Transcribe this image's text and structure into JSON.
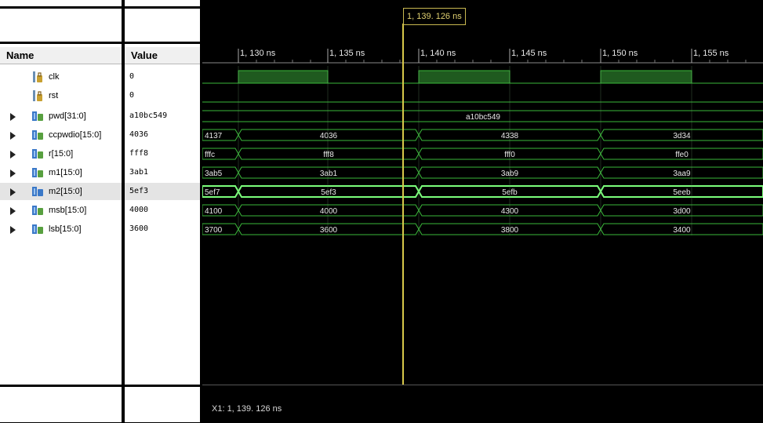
{
  "columns": {
    "name_header": "Name",
    "value_header": "Value"
  },
  "signals": [
    {
      "name": "clk",
      "value": "0",
      "icon": "scalar-signal-icon",
      "expandable": false
    },
    {
      "name": "rst",
      "value": "0",
      "icon": "scalar-signal-icon",
      "expandable": false
    },
    {
      "name": "pwd[31:0]",
      "value": "a10bc549",
      "icon": "bus-signal-icon",
      "expandable": true
    },
    {
      "name": "ccpwdio[15:0]",
      "value": "4036",
      "icon": "bus-signal-icon",
      "expandable": true
    },
    {
      "name": "r[15:0]",
      "value": "fff8",
      "icon": "bus-signal-icon",
      "expandable": true
    },
    {
      "name": "m1[15:0]",
      "value": "3ab1",
      "icon": "bus-signal-icon",
      "expandable": true
    },
    {
      "name": "m2[15:0]",
      "value": "5ef3",
      "icon": "bus-signal-icon",
      "expandable": true,
      "selected": true
    },
    {
      "name": "msb[15:0]",
      "value": "4000",
      "icon": "bus-signal-icon",
      "expandable": true
    },
    {
      "name": "lsb[15:0]",
      "value": "3600",
      "icon": "bus-signal-icon",
      "expandable": true
    }
  ],
  "timeline": {
    "ticks": [
      "1, 130 ns",
      "1, 135 ns",
      "1, 140 ns",
      "1, 145 ns",
      "1, 150 ns",
      "1, 155 ns"
    ],
    "cursor_label": "1, 139. 126 ns"
  },
  "waveforms": {
    "pwd": [
      "a10bc549"
    ],
    "ccpwdio": [
      "4137",
      "4036",
      "4338",
      "3d34"
    ],
    "r": [
      "fffc",
      "fff8",
      "fff0",
      "ffe0"
    ],
    "m1": [
      "3ab5",
      "3ab1",
      "3ab9",
      "3aa9"
    ],
    "m2": [
      "5ef7",
      "5ef3",
      "5efb",
      "5eeb"
    ],
    "msb": [
      "4100",
      "4000",
      "4300",
      "3d00"
    ],
    "lsb": [
      "3700",
      "3600",
      "3800",
      "3400"
    ]
  },
  "status": {
    "cursor_readout": "X1: 1, 139. 126 ns"
  },
  "colors": {
    "wave": "#3ab83a",
    "wave_bright": "#7cff7c",
    "clk_high": "#1f5a1f",
    "cursor": "#d8c84a",
    "grid": "#2a2a2a"
  }
}
